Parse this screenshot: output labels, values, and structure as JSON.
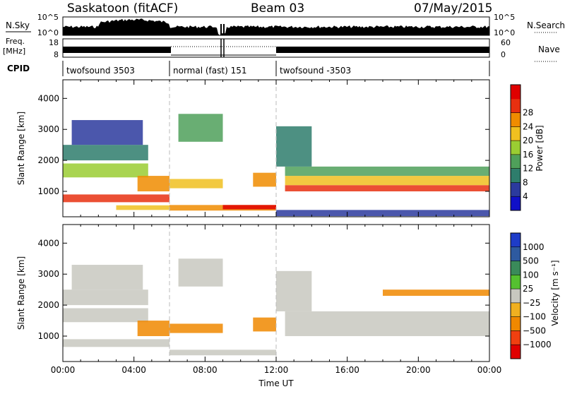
{
  "header": {
    "station": "Saskatoon (fitACF)",
    "beam": "Beam 03",
    "date": "07/May/2015"
  },
  "strip_labels": {
    "nsky": "N.Sky",
    "nsky_top": "10^5",
    "nsky_bottom": "10^0",
    "nsearch": "N.Search",
    "nsearch_top": "10^5",
    "nsearch_bottom": "10^0",
    "freq_line1": "Freq.",
    "freq_line2": "[MHz]",
    "freq_top": "18",
    "freq_bottom": "8",
    "nave": "Nave",
    "nave_top": "60",
    "nave_bottom": "0",
    "cpid": "CPID"
  },
  "cpid_segments": [
    {
      "label": "twofsound 3503",
      "start_hour": 0,
      "end_hour": 6
    },
    {
      "label": "normal (fast) 151",
      "start_hour": 6,
      "end_hour": 12
    },
    {
      "label": "twofsound -3503",
      "start_hour": 12,
      "end_hour": 24
    }
  ],
  "chart_data": [
    {
      "type": "heatmap",
      "panel": "power",
      "xlabel": "",
      "ylabel": "Slant Range [km]",
      "xlim_hours": [
        0,
        24
      ],
      "ylim": [
        180,
        4600
      ],
      "yticks": [
        "1000",
        "2000",
        "3000",
        "4000"
      ],
      "colorbar": {
        "label": "Power [dB]",
        "ticks": [
          "4",
          "8",
          "12",
          "16",
          "20",
          "24",
          "28"
        ],
        "colors": [
          "#1010c8",
          "#2b3a9e",
          "#2e7d6c",
          "#4fa05a",
          "#9acd32",
          "#f0c020",
          "#f08c00",
          "#e83010",
          "#e00000"
        ]
      },
      "echo_bands": [
        {
          "t0": 0.0,
          "t1": 6.0,
          "r0": 650,
          "r1": 900,
          "level": 7
        },
        {
          "t0": 0.0,
          "t1": 4.8,
          "r0": 1450,
          "r1": 1900,
          "level": 4
        },
        {
          "t0": 0.0,
          "t1": 4.8,
          "r0": 2000,
          "r1": 2500,
          "level": 2
        },
        {
          "t0": 0.5,
          "t1": 4.5,
          "r0": 2500,
          "r1": 3300,
          "level": 1
        },
        {
          "t0": 4.2,
          "t1": 6.0,
          "r0": 1000,
          "r1": 1500,
          "level": 6
        },
        {
          "t0": 6.0,
          "t1": 9.0,
          "r0": 1100,
          "r1": 1400,
          "level": 5
        },
        {
          "t0": 6.5,
          "t1": 9.0,
          "r0": 2600,
          "r1": 3500,
          "level": 3
        },
        {
          "t0": 3.0,
          "t1": 6.0,
          "r0": 400,
          "r1": 550,
          "level": 5
        },
        {
          "t0": 6.0,
          "t1": 12.0,
          "r0": 380,
          "r1": 560,
          "level": 6
        },
        {
          "t0": 9.0,
          "t1": 12.0,
          "r0": 420,
          "r1": 560,
          "level": 8
        },
        {
          "t0": 10.7,
          "t1": 12.0,
          "r0": 1150,
          "r1": 1600,
          "level": 6
        },
        {
          "t0": 12.5,
          "t1": 24.0,
          "r0": 1000,
          "r1": 1200,
          "level": 7
        },
        {
          "t0": 12.5,
          "t1": 24.0,
          "r0": 1200,
          "r1": 1500,
          "level": 5
        },
        {
          "t0": 12.5,
          "t1": 24.0,
          "r0": 1500,
          "r1": 1800,
          "level": 3
        },
        {
          "t0": 12.0,
          "t1": 14.0,
          "r0": 1800,
          "r1": 3100,
          "level": 2
        },
        {
          "t0": 12.0,
          "t1": 24.0,
          "r0": 200,
          "r1": 400,
          "level": 1
        }
      ]
    },
    {
      "type": "heatmap",
      "panel": "velocity",
      "xlabel": "Time UT",
      "ylabel": "Slant Range [km]",
      "xlim_hours": [
        0,
        24
      ],
      "ylim": [
        180,
        4600
      ],
      "xticks": [
        "00:00",
        "04:00",
        "08:00",
        "12:00",
        "16:00",
        "20:00",
        "00:00"
      ],
      "yticks": [
        "1000",
        "2000",
        "3000",
        "4000"
      ],
      "colorbar": {
        "label": "Velocity [m s⁻¹]",
        "ticks": [
          "1000",
          "500",
          "100",
          "25",
          "−25",
          "−100",
          "−500",
          "−1000"
        ],
        "colors": [
          "#1e3cc8",
          "#2e5aa0",
          "#3a8a5a",
          "#55c030",
          "#c8c8c0",
          "#f0b020",
          "#f08800",
          "#f04010",
          "#e00000"
        ]
      },
      "echo_bands": [
        {
          "t0": 0.0,
          "t1": 6.0,
          "r0": 650,
          "r1": 900,
          "level": 4
        },
        {
          "t0": 0.0,
          "t1": 4.8,
          "r0": 1450,
          "r1": 1900,
          "level": 4
        },
        {
          "t0": 0.0,
          "t1": 4.8,
          "r0": 2000,
          "r1": 2500,
          "level": 4
        },
        {
          "t0": 0.5,
          "t1": 4.5,
          "r0": 2500,
          "r1": 3300,
          "level": 4
        },
        {
          "t0": 4.2,
          "t1": 6.0,
          "r0": 1000,
          "r1": 1500,
          "level": 6
        },
        {
          "t0": 6.0,
          "t1": 9.0,
          "r0": 1100,
          "r1": 1400,
          "level": 6
        },
        {
          "t0": 6.5,
          "t1": 9.0,
          "r0": 2600,
          "r1": 3500,
          "level": 4
        },
        {
          "t0": 6.0,
          "t1": 12.0,
          "r0": 380,
          "r1": 560,
          "level": 4
        },
        {
          "t0": 10.7,
          "t1": 12.0,
          "r0": 1150,
          "r1": 1600,
          "level": 6
        },
        {
          "t0": 12.5,
          "t1": 24.0,
          "r0": 1000,
          "r1": 1800,
          "level": 4
        },
        {
          "t0": 12.0,
          "t1": 14.0,
          "r0": 1800,
          "r1": 3100,
          "level": 4
        },
        {
          "t0": 18.0,
          "t1": 24.0,
          "r0": 2300,
          "r1": 2500,
          "level": 6
        }
      ]
    }
  ]
}
